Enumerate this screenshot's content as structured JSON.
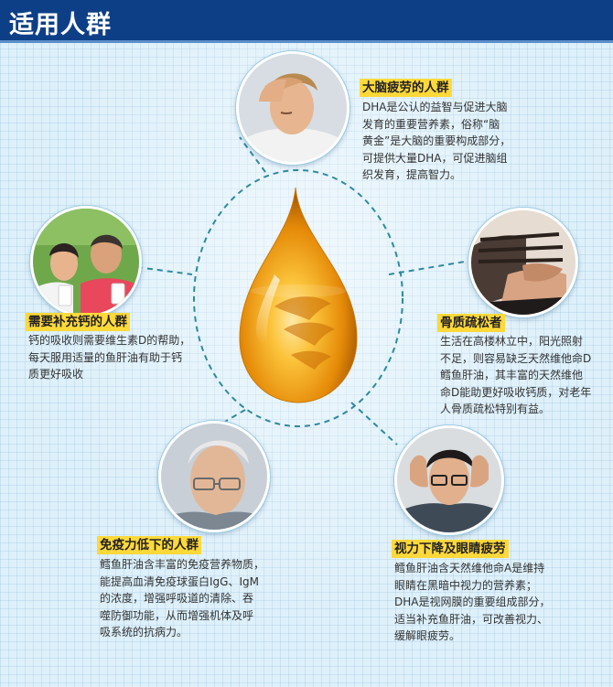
{
  "header": {
    "title": "适用人群"
  },
  "colors": {
    "header_bg": "#0d3f86",
    "title_highlight": "#ffd93a",
    "drop_gold": "#f2a614"
  },
  "groups": {
    "brain": {
      "title": "大脑疲劳的人群",
      "desc": "DHA是公认的益智与促进大脑\n发育的重要营养素，俗称“脑\n黄金”是大脑的重要构成部分，\n可提供大量DHA，可促进脑组\n织发育，提高智力。"
    },
    "calcium": {
      "title": "需要补充钙的人群",
      "desc": "钙的吸收则需要维生素D的帮助，\n每天服用适量的鱼肝油有助于钙\n质更好吸收"
    },
    "bone": {
      "title": "骨质疏松者",
      "desc": "生活在高楼林立中，阳光照射\n不足，则容易缺乏天然维他命D\n鳕鱼肝油，其丰富的天然维他\n命D能助更好吸收钙质，对老年\n人骨质疏松特别有益。"
    },
    "immunity": {
      "title": "免疫力低下的人群",
      "desc": "鳕鱼肝油含丰富的免疫营养物质，\n能提高血清免疫球蛋白IgG、IgM\n的浓度，增强呼吸道的清除、吞\n噬防御功能，从而增强机体及呼\n吸系统的抗病力。"
    },
    "vision": {
      "title": "视力下降及眼睛疲劳",
      "desc": "鳕鱼肝油含天然维他命A是维持\n眼睛在黑暗中视力的营养素；\nDHA是视网膜的重要组成部分，\n适当补充鱼肝油，可改善视力、\n缓解眼疲劳。"
    }
  }
}
